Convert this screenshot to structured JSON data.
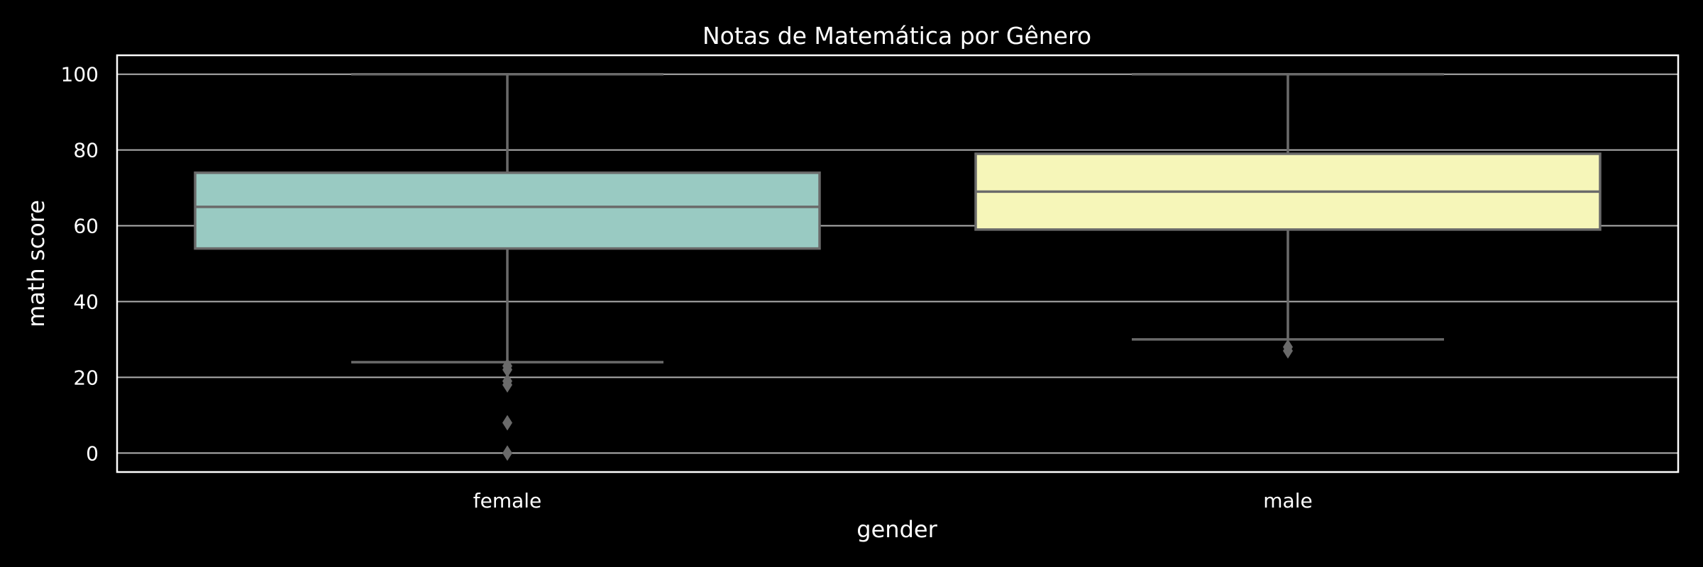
{
  "chart_data": {
    "type": "box",
    "title": "Notas de Matemática por Gênero",
    "xlabel": "gender",
    "ylabel": "math score",
    "categories": [
      "female",
      "male"
    ],
    "ylim": [
      -5,
      105
    ],
    "yticks": [
      0,
      20,
      40,
      60,
      80,
      100
    ],
    "grid": true,
    "boxes": [
      {
        "category": "female",
        "color": "#99cac2",
        "q1": 54,
        "median": 65,
        "q3": 74,
        "whisker_low": 24,
        "whisker_high": 100,
        "outliers": [
          23,
          22,
          19,
          18,
          8,
          0
        ]
      },
      {
        "category": "male",
        "color": "#f6f6b9",
        "q1": 59,
        "median": 69,
        "q3": 79,
        "whisker_low": 30,
        "whisker_high": 100,
        "outliers": [
          28,
          27
        ]
      }
    ]
  }
}
